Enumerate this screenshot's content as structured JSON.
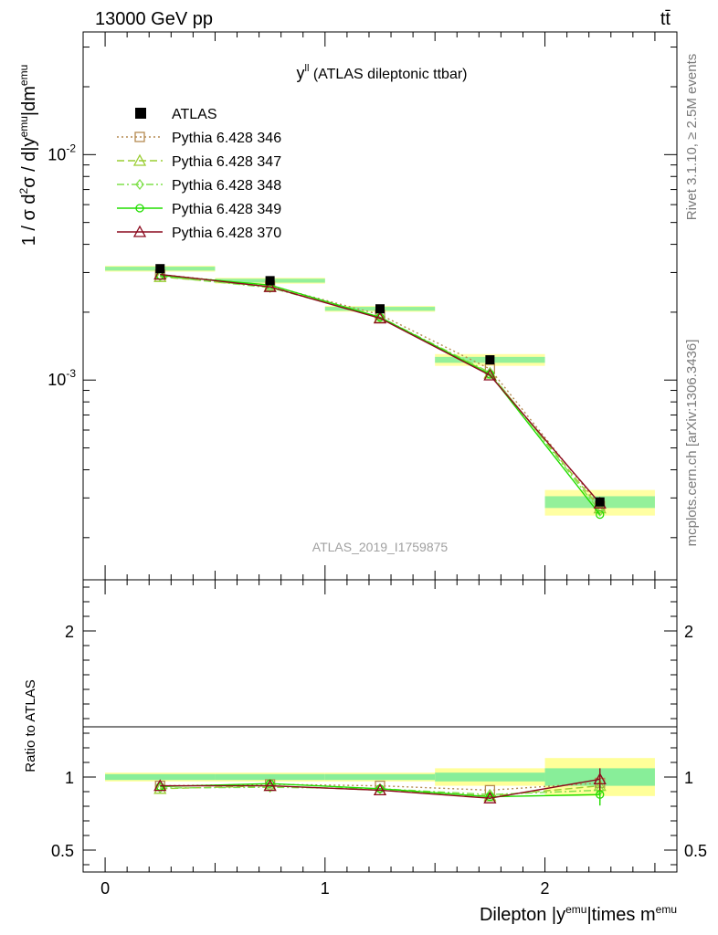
{
  "header": {
    "left": "13000 GeV pp",
    "right": "tt̄"
  },
  "side_labels": {
    "rivet": "Rivet 3.1.10, ≥ 2.5M events",
    "mcplots": "mcplots.cern.ch [arXiv:1306.3436]"
  },
  "chart_data": {
    "type": "line",
    "title": "y^ll (ATLAS dileptonic ttbar)",
    "title_main": "y",
    "title_sup": "ll",
    "title_rest": " (ATLAS dileptonic ttbar)",
    "analysis_id": "ATLAS_2019_I1759875",
    "xlabel": "Dilepton |y^emu|times m^emu",
    "ylabel": "1 / σ d²σ / d|y^emu|dm^emu",
    "ratio_ylabel": "Ratio to ATLAS",
    "xlim": [
      -0.1,
      2.6
    ],
    "ylim": [
      0.00013,
      0.035
    ],
    "ratio_ylim": [
      0.35,
      2.35
    ],
    "log_y": true,
    "x_ticks": [
      "0",
      "1",
      "2"
    ],
    "y_ticks": [
      "10^-2",
      "10^-3"
    ],
    "ratio_ticks": [
      "0.5",
      "1",
      "2"
    ],
    "bins": [
      [
        0,
        0.5
      ],
      [
        0.5,
        1.0
      ],
      [
        1.0,
        1.5
      ],
      [
        1.5,
        2.0
      ],
      [
        2.0,
        2.5
      ]
    ],
    "x": [
      0.25,
      0.75,
      1.25,
      1.75,
      2.25
    ],
    "data": {
      "name": "ATLAS",
      "values": [
        0.00312,
        0.00276,
        0.00207,
        0.00123,
        0.000288
      ],
      "unc_inner": [
        0.02,
        0.02,
        0.02,
        0.03,
        0.06
      ],
      "unc_outer": [
        0.03,
        0.03,
        0.03,
        0.06,
        0.13
      ]
    },
    "series": [
      {
        "name": "Pythia 6.428 346",
        "color": "#b58a50",
        "marker": "square",
        "dash": "2,3",
        "values": [
          0.00294,
          0.00262,
          0.00195,
          0.00112,
          0.000276
        ],
        "ratio": [
          0.94,
          0.95,
          0.94,
          0.91,
          0.96
        ]
      },
      {
        "name": "Pythia 6.428 347",
        "color": "#9acd32",
        "marker": "triangle",
        "dash": "8,4",
        "values": [
          0.00287,
          0.0026,
          0.00189,
          0.00107,
          0.00027
        ],
        "ratio": [
          0.92,
          0.94,
          0.91,
          0.87,
          0.94
        ]
      },
      {
        "name": "Pythia 6.428 348",
        "color": "#7ee04a",
        "marker": "diamond",
        "dash": "8,3,2,3",
        "values": [
          0.00289,
          0.00257,
          0.0019,
          0.00108,
          0.000262
        ],
        "ratio": [
          0.925,
          0.93,
          0.92,
          0.88,
          0.91
        ]
      },
      {
        "name": "Pythia 6.428 349",
        "color": "#22dd00",
        "marker": "circle",
        "dash": "",
        "values": [
          0.00291,
          0.00264,
          0.0019,
          0.00106,
          0.000253
        ],
        "ratio": [
          0.935,
          0.955,
          0.92,
          0.865,
          0.88
        ]
      },
      {
        "name": "Pythia 6.428 370",
        "color": "#8b0a1e",
        "marker": "triangle",
        "dash": "",
        "values": [
          0.00294,
          0.00259,
          0.00188,
          0.00105,
          0.000284
        ],
        "ratio": [
          0.94,
          0.94,
          0.91,
          0.855,
          0.985
        ]
      }
    ]
  }
}
